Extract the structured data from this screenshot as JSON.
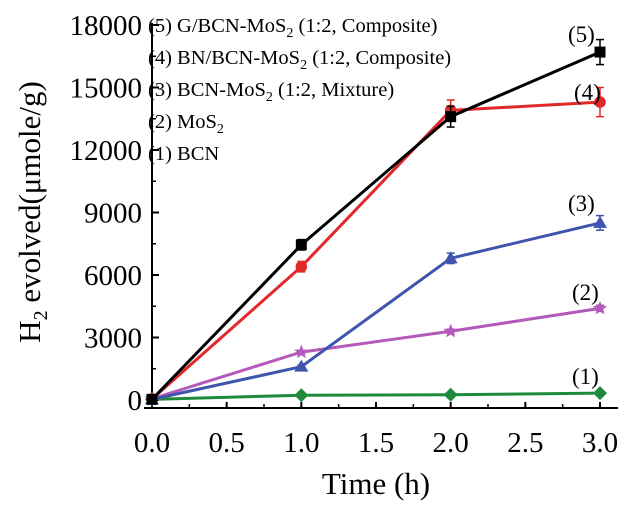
{
  "chart_data": {
    "type": "line",
    "xlabel": "Time (h)",
    "ylabel_prefix": "H",
    "ylabel_sub": "2",
    "ylabel_suffix": " evolved(μmole/g)",
    "xlim": [
      0,
      3
    ],
    "ylim": [
      0,
      18000
    ],
    "xticks": [
      "0.0",
      "0.5",
      "1.0",
      "1.5",
      "2.0",
      "2.5",
      "3.0"
    ],
    "yticks": [
      "0",
      "3000",
      "6000",
      "9000",
      "12000",
      "15000",
      "18000"
    ],
    "grid": false,
    "legend_placement": "top-left",
    "series": [
      {
        "legend_label": "(1) BCN",
        "number_label": "(1)",
        "color": "#1e8a3c",
        "marker": "diamond",
        "x": [
          0,
          1,
          2,
          3
        ],
        "y": [
          30,
          230,
          250,
          330
        ],
        "error": [
          0,
          30,
          30,
          40
        ]
      },
      {
        "legend_label": "(2) MoS",
        "legend_sub": "2",
        "legend_after": "",
        "number_label": "(2)",
        "color": "#b45aba",
        "marker": "star",
        "x": [
          0,
          1,
          2,
          3
        ],
        "y": [
          60,
          2300,
          3300,
          4400
        ],
        "error": [
          0,
          80,
          100,
          150
        ]
      },
      {
        "legend_label": "(3) BCN-MoS",
        "legend_sub": "2",
        "legend_after": " (1:2, Mixture)",
        "number_label": "(3)",
        "color": "#3e54ad",
        "marker": "triangle",
        "x": [
          0,
          1,
          2,
          3
        ],
        "y": [
          30,
          1600,
          6800,
          8500
        ],
        "error": [
          0,
          80,
          250,
          350
        ]
      },
      {
        "legend_label": "(4) BN/BCN-MoS",
        "legend_sub": "2",
        "legend_after": " (1:2, Composite)",
        "number_label": "(4)",
        "color": "#e3282a",
        "marker": "circle",
        "x": [
          0,
          1,
          2,
          3
        ],
        "y": [
          50,
          6400,
          13900,
          14300
        ],
        "error": [
          0,
          250,
          500,
          700
        ]
      },
      {
        "legend_label": "(5) G/BCN-MoS",
        "legend_sub": "2",
        "legend_after": " (1:2, Composite)",
        "number_label": "(5)",
        "color": "#000000",
        "marker": "square",
        "x": [
          0,
          1,
          2,
          3
        ],
        "y": [
          30,
          7450,
          13600,
          16700
        ],
        "error": [
          0,
          250,
          500,
          600
        ]
      }
    ]
  }
}
